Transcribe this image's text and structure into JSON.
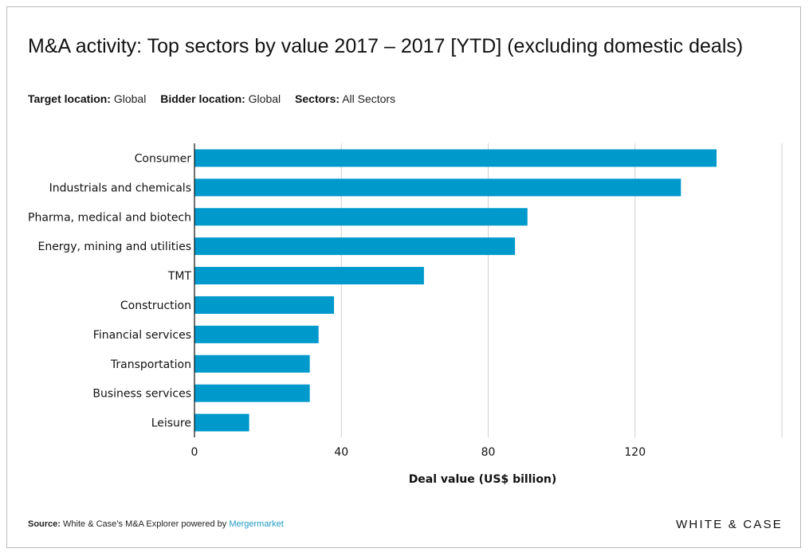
{
  "header": {
    "title": "M&A activity: Top sectors by value 2017 – 2017 [YTD] (excluding domestic deals)",
    "filters": [
      {
        "label": "Target location:",
        "value": "Global"
      },
      {
        "label": "Bidder location:",
        "value": "Global"
      },
      {
        "label": "Sectors:",
        "value": "All Sectors"
      }
    ]
  },
  "footer": {
    "source_label": "Source:",
    "source_text": "White & Case’s M&A Explorer powered by",
    "source_link": "Mergermarket",
    "brand": "WHITE & CASE"
  },
  "colors": {
    "bar": "#0099cc",
    "grid": "#cfcfcf",
    "axis": "#111111"
  },
  "chart_data": {
    "type": "bar",
    "orientation": "horizontal",
    "categories": [
      "Consumer",
      "Industrials and chemicals",
      "Pharma, medical and biotech",
      "Energy, mining and utilities",
      "TMT",
      "Construction",
      "Financial services",
      "Transportation",
      "Business services",
      "Leisure"
    ],
    "values": [
      142.2,
      132.5,
      90.7,
      87.3,
      62.5,
      38.0,
      33.8,
      31.4,
      31.4,
      14.9
    ],
    "xlabel": "Deal value (US$ billion)",
    "ylabel": "",
    "xlim": [
      0,
      160
    ],
    "xticks": [
      0,
      40,
      80,
      120
    ],
    "xtick_labels": [
      "0",
      "40",
      "80",
      "120"
    ],
    "grid": "vertical"
  }
}
